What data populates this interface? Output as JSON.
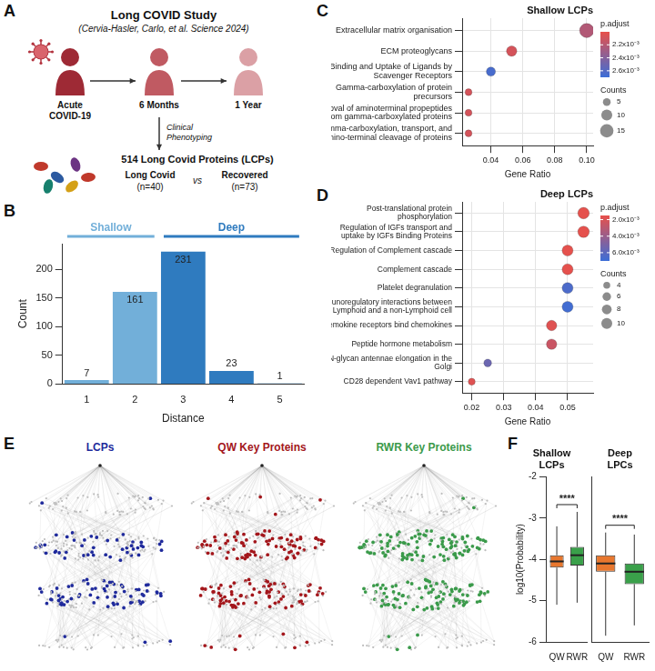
{
  "panel_a": {
    "letter": "A",
    "title": "Long COVID Study",
    "citation": "(Cervia-Hasler, Carlo, et al. Science 2024)",
    "timeline": [
      "Acute COVID-19",
      "6 Months",
      "1 Year"
    ],
    "step": "Clinical Phenotyping",
    "result": "514 Long Covid Proteins (LCPs)",
    "groups": [
      {
        "name": "Long Covid",
        "n": "(n=40)"
      },
      {
        "name": "Recovered",
        "n": "(n=73)"
      }
    ],
    "versus": "vs"
  },
  "panel_e": {
    "letter": "E",
    "networks": [
      {
        "title": "LCPs",
        "color": "#1f2a9c"
      },
      {
        "title": "QW Key Proteins",
        "color": "#a3161b"
      },
      {
        "title": "RWR Key Proteins",
        "color": "#3a9a4a"
      }
    ]
  },
  "chart_data": [
    {
      "panel": "B",
      "type": "bar",
      "categories": [
        1,
        2,
        3,
        4,
        5
      ],
      "values": [
        7,
        161,
        231,
        23,
        1
      ],
      "colors": [
        "#72afd9",
        "#72afd9",
        "#2f7bbf",
        "#2f7bbf",
        "#2f7bbf"
      ],
      "x_label": "Distance",
      "y_label": "Count",
      "ylim": [
        0,
        245
      ],
      "yticks": [
        0,
        50,
        100,
        150,
        200
      ],
      "grid": false,
      "data_labels": true,
      "annotations": [
        {
          "text": "Shallow",
          "from": 1,
          "to": 2,
          "color": "#72afd9"
        },
        {
          "text": "Deep",
          "from": 3,
          "to": 5,
          "color": "#2f7bbf"
        }
      ]
    },
    {
      "panel": "C",
      "type": "bubble",
      "title": "Shallow LCPs",
      "categories": [
        "Extracellular matrix organisation",
        "ECM proteoglycans",
        "Binding and Uptake of Ligands by Scavenger Receptors",
        "Gamma-carboxylation of protein precursors",
        "Removal of aminoterminal propeptides from gamma-carboxylated proteins",
        "Gamma-carboxylation, transport, and amino-terminal cleavage of proteins"
      ],
      "x": [
        0.1,
        0.053,
        0.04,
        0.026,
        0.026,
        0.026
      ],
      "counts": [
        17,
        9,
        7,
        4,
        4,
        4
      ],
      "p_adjust": [
        0.00222,
        0.00208,
        0.00265,
        0.00208,
        0.00208,
        0.00208
      ],
      "x_label": "Gene Ratio",
      "xlim": [
        0.022,
        0.104
      ],
      "xticks": [
        0.04,
        0.06,
        0.08,
        {
          "value": 0.1,
          "label": "0.10"
        }
      ],
      "grid": true,
      "colorbar": {
        "title": "p.adjust",
        "range": [
          0.002,
          0.0027
        ],
        "ticks": [
          {
            "value": 0.0022,
            "label": "2.2x10⁻³"
          },
          {
            "value": 0.0024,
            "label": "2.4x10⁻³"
          },
          {
            "value": 0.0026,
            "label": "2.6x10⁻³"
          }
        ]
      },
      "size_legend": {
        "title": "Counts",
        "values": [
          5,
          10,
          15
        ]
      }
    },
    {
      "panel": "D",
      "type": "bubble",
      "title": "Deep LCPs",
      "categories": [
        "Post-translational protein phosphorylation",
        "Regulation of IGFs transport and uptake by IGFs Binding Proteins",
        "Regulation of Complement cascade",
        "Complement cascade",
        "Platelet degranulation",
        "Immunoregulatory interactions between a Lymphoid and a non-Lymphoid cell",
        "Chemokine receptors bind chemokines",
        "Peptide hormone metabolism",
        "N-glycan antennae elongation in the Golgi",
        "CD28 dependent Vav1 pathway"
      ],
      "x": [
        0.055,
        0.055,
        0.05,
        0.05,
        0.05,
        0.05,
        0.045,
        0.045,
        0.025,
        0.02
      ],
      "counts": [
        11,
        11,
        10,
        10,
        10,
        10,
        9,
        9,
        5,
        4
      ],
      "p_adjust": [
        0.0016,
        0.0016,
        0.0016,
        0.0016,
        0.0065,
        0.0068,
        0.0018,
        0.0025,
        0.0055,
        0.0018
      ],
      "x_label": "Gene Ratio",
      "xlim": [
        0.017,
        0.058
      ],
      "xticks": [
        0.02,
        0.03,
        0.04,
        0.05
      ],
      "grid": true,
      "colorbar": {
        "title": "p.adjust",
        "range": [
          0.0015,
          0.007
        ],
        "ticks": [
          {
            "value": 0.002,
            "label": "2.0x10⁻³"
          },
          {
            "value": 0.004,
            "label": "4.0x10⁻³"
          },
          {
            "value": 0.006,
            "label": "6.0x10⁻³"
          }
        ]
      },
      "size_legend": {
        "title": "Counts",
        "values": [
          4,
          6,
          8,
          10
        ]
      }
    },
    {
      "panel": "F",
      "type": "box",
      "title": "Shallow LCPs",
      "categories": [
        "QW",
        "RWR"
      ],
      "colors": [
        "#e8772e",
        "#3aa04a"
      ],
      "boxes": [
        {
          "min": -5.1,
          "q1": -4.2,
          "median": -4.05,
          "q3": -3.9,
          "max": -3.2
        },
        {
          "min": -5.05,
          "q1": -4.15,
          "median": -3.9,
          "q3": -3.7,
          "max": -2.85
        }
      ],
      "y_label": "log10(Probability)",
      "ylim": [
        -6,
        -2
      ],
      "yticks": [
        -6,
        -5,
        -4,
        -3,
        -2
      ],
      "grid": false,
      "significance": {
        "label": "****",
        "between": [
          "QW",
          "RWR"
        ]
      }
    },
    {
      "type": "box",
      "title": "Deep LPCs",
      "categories": [
        "QW",
        "RWR"
      ],
      "colors": [
        "#e8772e",
        "#3aa04a"
      ],
      "boxes": [
        {
          "min": -5.85,
          "q1": -4.3,
          "median": -4.1,
          "q3": -3.9,
          "max": -3.35
        },
        {
          "min": -5.6,
          "q1": -4.6,
          "median": -4.3,
          "q3": -4.1,
          "max": -3.4
        }
      ],
      "ylim": [
        -6,
        -2
      ],
      "yticks": [
        -6,
        -5,
        -4,
        -3,
        -2
      ],
      "grid": false,
      "tick_labels": "x",
      "significance": {
        "label": "****",
        "between": [
          "QW",
          "RWR"
        ]
      }
    }
  ]
}
